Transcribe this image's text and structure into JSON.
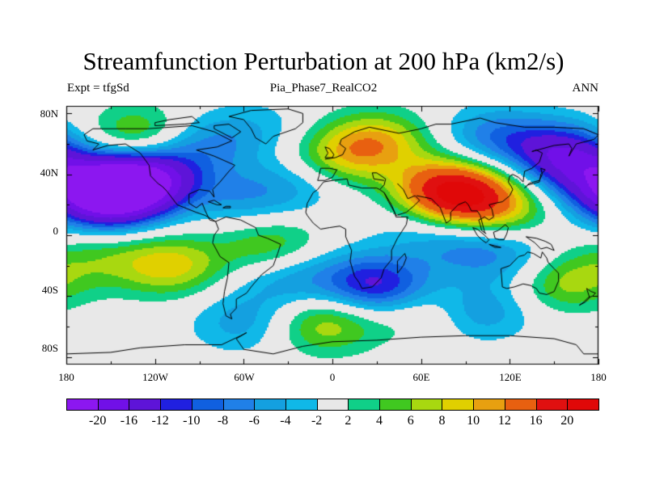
{
  "title": "Streamfunction Perturbation at 200 hPa (km2/s)",
  "subtitle_left": "Expt = tfgSd",
  "subtitle_center": "Pia_Phase7_RealCO2",
  "subtitle_right": "ANN",
  "lat_labels": [
    "80N",
    "40N",
    "0",
    "40S",
    "80S"
  ],
  "lon_labels": [
    "180",
    "120W",
    "60W",
    "0",
    "60E",
    "120E",
    "180"
  ],
  "colorbar": {
    "levels": [
      "-20",
      "-16",
      "-12",
      "-10",
      "-8",
      "-6",
      "-4",
      "-2",
      "2",
      "4",
      "6",
      "8",
      "10",
      "12",
      "16",
      "20"
    ],
    "colors": [
      "#8c17f0",
      "#7110e8",
      "#5e14d8",
      "#2020e0",
      "#1060e0",
      "#2080e8",
      "#14a0e0",
      "#10b8e8",
      "#e8e8e8",
      "#10d088",
      "#40c820",
      "#a8d810",
      "#e0d000",
      "#e8a010",
      "#e86010",
      "#e01010",
      "#e00808"
    ]
  },
  "map": {
    "background_color": "#e8e8e8",
    "features": [
      {
        "lon": -140,
        "lat": 33,
        "value": -21
      },
      {
        "lon": -155,
        "lat": 22,
        "value": -14
      },
      {
        "lon": -120,
        "lat": 40,
        "value": -8
      },
      {
        "lon": -110,
        "lat": -20,
        "value": 9
      },
      {
        "lon": -160,
        "lat": -15,
        "value": 4
      },
      {
        "lon": -40,
        "lat": -8,
        "value": 7
      },
      {
        "lon": -60,
        "lat": -58,
        "value": -5
      },
      {
        "lon": -5,
        "lat": -58,
        "value": 8
      },
      {
        "lon": 30,
        "lat": -33,
        "value": -13
      },
      {
        "lon": 60,
        "lat": -50,
        "value": 4
      },
      {
        "lon": -60,
        "lat": 25,
        "value": -5
      },
      {
        "lon": -130,
        "lat": 65,
        "value": 8
      },
      {
        "lon": -90,
        "lat": 60,
        "value": -6
      },
      {
        "lon": -50,
        "lat": 70,
        "value": -3
      },
      {
        "lon": 30,
        "lat": 62,
        "value": 9
      },
      {
        "lon": 5,
        "lat": 50,
        "value": 7
      },
      {
        "lon": -20,
        "lat": 35,
        "value": -4
      },
      {
        "lon": 80,
        "lat": 30,
        "value": 18
      },
      {
        "lon": 95,
        "lat": 18,
        "value": 7
      },
      {
        "lon": 120,
        "lat": 20,
        "value": 5
      },
      {
        "lon": 110,
        "lat": 65,
        "value": -7
      },
      {
        "lon": 155,
        "lat": 55,
        "value": -12
      },
      {
        "lon": 170,
        "lat": 38,
        "value": -9
      },
      {
        "lon": 95,
        "lat": -8,
        "value": -6
      },
      {
        "lon": 100,
        "lat": -50,
        "value": -6
      },
      {
        "lon": 155,
        "lat": -30,
        "value": 8
      },
      {
        "lon": 130,
        "lat": -20,
        "value": -4
      },
      {
        "lon": -35,
        "lat": -32,
        "value": -4
      },
      {
        "lon": -20,
        "lat": -20,
        "value": -3
      },
      {
        "lon": 60,
        "lat": 5,
        "value": -3
      }
    ]
  }
}
